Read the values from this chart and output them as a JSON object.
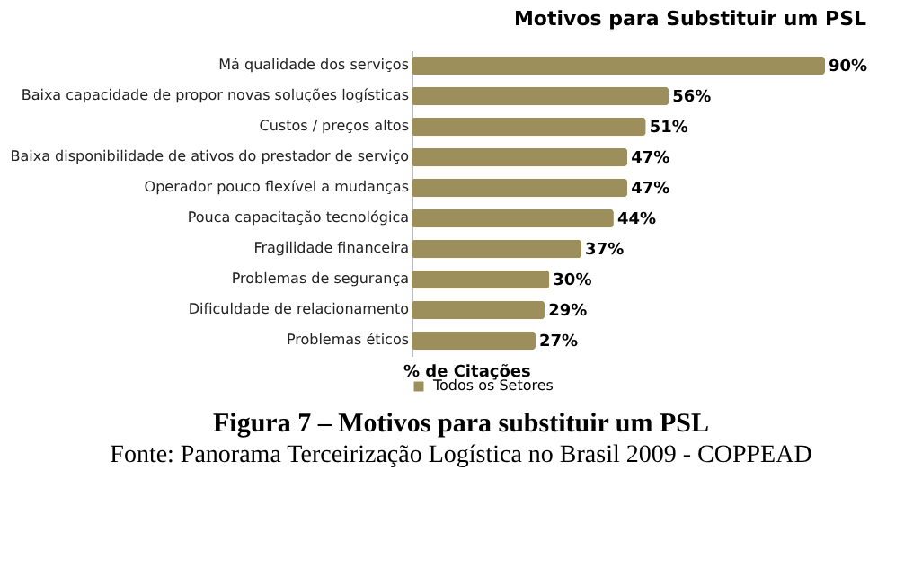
{
  "chart_data": {
    "type": "bar",
    "orientation": "horizontal",
    "title": "Motivos para Substituir um PSL",
    "xlabel": "% de Citações",
    "categories": [
      "Má qualidade dos serviços",
      "Baixa capacidade de propor novas soluções logísticas",
      "Custos / preços altos",
      "Baixa disponibilidade de ativos do prestador de serviço",
      "Operador pouco flexível a mudanças",
      "Pouca capacitação tecnológica",
      "Fragilidade financeira",
      "Problemas de segurança",
      "Dificuldade de relacionamento",
      "Problemas éticos"
    ],
    "series": [
      {
        "name": "Todos os Setores",
        "color": "#9c8f5c",
        "values": [
          90,
          56,
          51,
          47,
          47,
          44,
          37,
          30,
          29,
          27
        ],
        "value_labels": [
          "90%",
          "56%",
          "51%",
          "47%",
          "47%",
          "44%",
          "37%",
          "30%",
          "29%",
          "27%"
        ]
      }
    ],
    "legend": "bottom",
    "annotations": [
      "Figura 7 – Motivos para substituir um PSL",
      "Fonte: Panorama Terceirização Logística no Brasil 2009 - COPPEAD"
    ]
  }
}
